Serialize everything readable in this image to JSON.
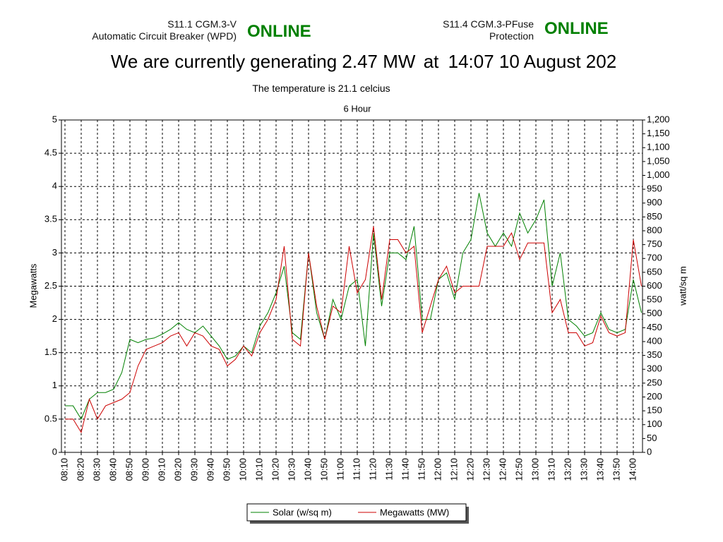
{
  "header": {
    "left_station": "S11.1 CGM.3-V",
    "left_device": "Automatic Circuit Breaker (WPD)",
    "left_status": "ONLINE",
    "right_station": "S11.4 CGM.3-PFuse",
    "right_device": "Protection",
    "right_status": "ONLINE",
    "generating_prefix": "We are currently generating",
    "generating_value": "2.47",
    "generating_unit": "MW",
    "at": "at",
    "time": "14:07",
    "date": "10 August 202",
    "temperature_prefix": "The temperature is",
    "temperature_value": "21.1",
    "temperature_unit": "celcius"
  },
  "chart_data": {
    "type": "line",
    "title": "6 Hour",
    "y_label": "Megawatts",
    "y2_label": "watt/sq m",
    "grid": true,
    "x": [
      "08:10",
      "08:15",
      "08:20",
      "08:25",
      "08:30",
      "08:35",
      "08:40",
      "08:45",
      "08:50",
      "08:55",
      "09:00",
      "09:05",
      "09:10",
      "09:15",
      "09:20",
      "09:25",
      "09:30",
      "09:35",
      "09:40",
      "09:45",
      "09:50",
      "09:55",
      "10:00",
      "10:05",
      "10:10",
      "10:15",
      "10:20",
      "10:25",
      "10:30",
      "10:35",
      "10:40",
      "10:45",
      "10:50",
      "10:55",
      "11:00",
      "11:05",
      "11:10",
      "11:15",
      "11:20",
      "11:25",
      "11:30",
      "11:35",
      "11:40",
      "11:45",
      "11:50",
      "11:55",
      "12:00",
      "12:05",
      "12:10",
      "12:15",
      "12:20",
      "12:25",
      "12:30",
      "12:35",
      "12:40",
      "12:45",
      "12:50",
      "12:55",
      "13:00",
      "13:05",
      "13:10",
      "13:15",
      "13:20",
      "13:25",
      "13:30",
      "13:35",
      "13:40",
      "13:45",
      "13:50",
      "13:55",
      "14:00",
      "14:05"
    ],
    "ylim": [
      0,
      5
    ],
    "yticks": [
      0,
      0.5,
      1,
      1.5,
      2,
      2.5,
      3,
      3.5,
      4,
      4.5,
      5
    ],
    "y2lim": [
      0,
      1200
    ],
    "y2ticks": [
      0,
      50,
      100,
      150,
      200,
      250,
      300,
      350,
      400,
      450,
      500,
      550,
      600,
      650,
      700,
      750,
      800,
      850,
      900,
      950,
      {
        "value": 1000,
        "label": "1,000"
      },
      {
        "value": 1050,
        "label": "1,050"
      },
      {
        "value": 1100,
        "label": "1,100"
      },
      {
        "value": 1150,
        "label": "1,150"
      },
      {
        "value": 1200,
        "label": "1,200"
      }
    ],
    "series": [
      {
        "name": "Solar (w/sq m)",
        "color": "#008000",
        "axis": "y2",
        "values": [
          168,
          168,
          120,
          192,
          216,
          216,
          228,
          288,
          408,
          396,
          408,
          413,
          427,
          444,
          468,
          444,
          432,
          456,
          420,
          384,
          336,
          348,
          384,
          360,
          456,
          504,
          576,
          672,
          432,
          408,
          720,
          504,
          408,
          552,
          480,
          600,
          624,
          384,
          792,
          528,
          720,
          720,
          696,
          816,
          480,
          480,
          624,
          648,
          552,
          720,
          768,
          936,
          792,
          744,
          792,
          744,
          864,
          792,
          840,
          912,
          600,
          720,
          480,
          456,
          420,
          432,
          504,
          444,
          432,
          444,
          624,
          504
        ]
      },
      {
        "name": "Megawatts (MW)",
        "color": "#cc0000",
        "values": [
          0.5,
          0.5,
          0.3,
          0.8,
          0.5,
          0.7,
          0.75,
          0.8,
          0.9,
          1.3,
          1.55,
          1.6,
          1.65,
          1.75,
          1.8,
          1.6,
          1.8,
          1.75,
          1.6,
          1.55,
          1.3,
          1.4,
          1.6,
          1.45,
          1.8,
          2.0,
          2.3,
          3.1,
          1.7,
          1.6,
          3.0,
          2.2,
          1.7,
          2.2,
          2.1,
          3.1,
          2.4,
          2.6,
          3.4,
          2.3,
          3.2,
          3.2,
          3.0,
          3.1,
          1.8,
          2.2,
          2.6,
          2.8,
          2.4,
          2.5,
          2.5,
          2.5,
          3.1,
          3.1,
          3.1,
          3.3,
          2.9,
          3.15,
          3.15,
          3.15,
          2.1,
          2.3,
          1.8,
          1.8,
          1.6,
          1.65,
          2.05,
          1.8,
          1.75,
          1.8,
          3.2,
          2.5
        ]
      }
    ]
  }
}
